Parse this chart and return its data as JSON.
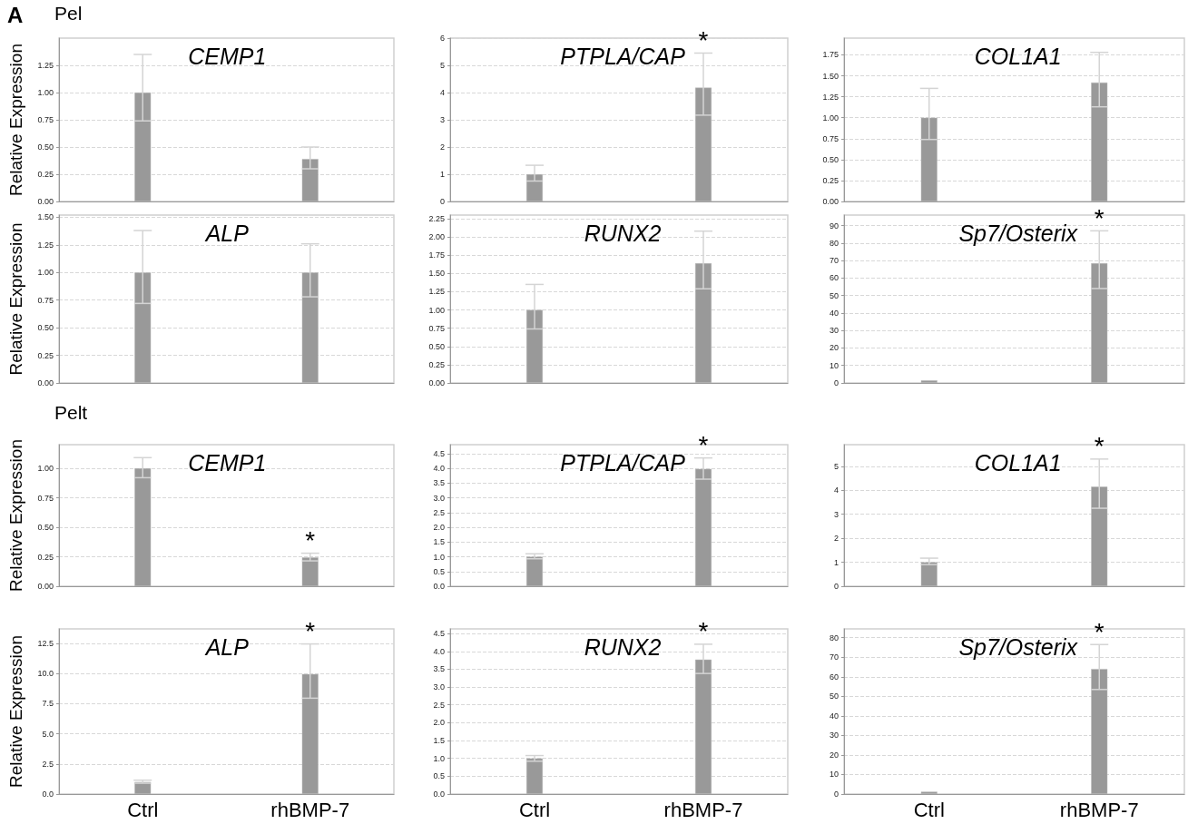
{
  "chart_data": [
    {
      "type": "bar",
      "title": "CEMP1",
      "ylabel": "Relative Expression",
      "annotations": [
        "A",
        "Pel"
      ],
      "categories": [
        "Ctrl",
        "rhBMP-7"
      ],
      "values": [
        1.0,
        0.39
      ],
      "errors": [
        [
          0.74,
          1.35
        ],
        [
          0.3,
          0.5
        ]
      ],
      "color": "#999999",
      "ylim": [
        0,
        1.5
      ],
      "yticks": [
        {
          "value": 0,
          "label": "0.00"
        },
        {
          "value": 0.25,
          "label": "0.25"
        },
        {
          "value": 0.5,
          "label": "0.50"
        },
        {
          "value": 0.75,
          "label": "0.75"
        },
        {
          "value": 1,
          "label": "1.00"
        },
        {
          "value": 1.25,
          "label": "1.25"
        }
      ],
      "grid": "y",
      "tick_labels": "y"
    },
    {
      "type": "bar",
      "title": "PTPLA/CAP",
      "annotations": [
        {
          "text": "*",
          "x": "rhBMP-7",
          "y": 5.45
        }
      ],
      "categories": [
        "Ctrl",
        "rhBMP-7"
      ],
      "values": [
        1.0,
        4.18
      ],
      "errors": [
        [
          0.75,
          1.33
        ],
        [
          3.17,
          5.45
        ]
      ],
      "color": "#999999",
      "ylim": [
        0,
        6
      ],
      "yticks": [
        0,
        1,
        2,
        3,
        4,
        5,
        6
      ],
      "grid": "y",
      "tick_labels": "y"
    },
    {
      "type": "bar",
      "title": "COL1A1",
      "categories": [
        "Ctrl",
        "rhBMP-7"
      ],
      "values": [
        1.0,
        1.42
      ],
      "errors": [
        [
          0.74,
          1.35
        ],
        [
          1.13,
          1.78
        ]
      ],
      "color": "#999999",
      "ylim": [
        0,
        1.95
      ],
      "yticks": [
        {
          "value": 0,
          "label": "0.00"
        },
        {
          "value": 0.25,
          "label": "0.25"
        },
        {
          "value": 0.5,
          "label": "0.50"
        },
        {
          "value": 0.75,
          "label": "0.75"
        },
        {
          "value": 1,
          "label": "1.00"
        },
        {
          "value": 1.25,
          "label": "1.25"
        },
        {
          "value": 1.5,
          "label": "1.50"
        },
        {
          "value": 1.75,
          "label": "1.75"
        }
      ],
      "grid": "y",
      "tick_labels": "y"
    },
    {
      "type": "bar",
      "title": "ALP",
      "ylabel": "Relative Expression",
      "categories": [
        "Ctrl",
        "rhBMP-7"
      ],
      "values": [
        1.0,
        1.0
      ],
      "errors": [
        [
          0.72,
          1.38
        ],
        [
          0.78,
          1.26
        ]
      ],
      "color": "#999999",
      "ylim": [
        0,
        1.52
      ],
      "yticks": [
        {
          "value": 0,
          "label": "0.00"
        },
        {
          "value": 0.25,
          "label": "0.25"
        },
        {
          "value": 0.5,
          "label": "0.50"
        },
        {
          "value": 0.75,
          "label": "0.75"
        },
        {
          "value": 1,
          "label": "1.00"
        },
        {
          "value": 1.25,
          "label": "1.25"
        },
        {
          "value": 1.5,
          "label": "1.50"
        }
      ],
      "grid": "y",
      "tick_labels": "y"
    },
    {
      "type": "bar",
      "title": "RUNX2",
      "categories": [
        "Ctrl",
        "rhBMP-7"
      ],
      "values": [
        1.0,
        1.64
      ],
      "errors": [
        [
          0.74,
          1.35
        ],
        [
          1.29,
          2.08
        ]
      ],
      "color": "#999999",
      "ylim": [
        0,
        2.3
      ],
      "yticks": [
        {
          "value": 0,
          "label": "0.00"
        },
        {
          "value": 0.25,
          "label": "0.25"
        },
        {
          "value": 0.5,
          "label": "0.50"
        },
        {
          "value": 0.75,
          "label": "0.75"
        },
        {
          "value": 1,
          "label": "1.00"
        },
        {
          "value": 1.25,
          "label": "1.25"
        },
        {
          "value": 1.5,
          "label": "1.50"
        },
        {
          "value": 1.75,
          "label": "1.75"
        },
        {
          "value": 2,
          "label": "2.00"
        },
        {
          "value": 2.25,
          "label": "2.25"
        }
      ],
      "grid": "y",
      "tick_labels": "y"
    },
    {
      "type": "bar",
      "title": "Sp7/Osterix",
      "annotations": [
        {
          "text": "*",
          "x": "rhBMP-7",
          "y": 87
        }
      ],
      "categories": [
        "Ctrl",
        "rhBMP-7"
      ],
      "values": [
        1.5,
        68.5
      ],
      "errors": [
        null,
        [
          54,
          87
        ]
      ],
      "color": "#999999",
      "ylim": [
        0,
        96
      ],
      "yticks": [
        0,
        10,
        20,
        30,
        40,
        50,
        60,
        70,
        80,
        90
      ],
      "grid": "y",
      "tick_labels": "y"
    },
    {
      "type": "bar",
      "title": "CEMP1",
      "ylabel": "Relative Expression",
      "annotations": [
        "Pelt",
        {
          "text": "*",
          "x": "rhBMP-7",
          "y": 0.28
        }
      ],
      "categories": [
        "Ctrl",
        "rhBMP-7"
      ],
      "values": [
        1.0,
        0.245
      ],
      "errors": [
        [
          0.92,
          1.09
        ],
        [
          0.215,
          0.28
        ]
      ],
      "color": "#999999",
      "ylim": [
        0,
        1.2
      ],
      "yticks": [
        {
          "value": 0,
          "label": "0.00"
        },
        {
          "value": 0.25,
          "label": "0.25"
        },
        {
          "value": 0.5,
          "label": "0.50"
        },
        {
          "value": 0.75,
          "label": "0.75"
        },
        {
          "value": 1,
          "label": "1.00"
        }
      ],
      "grid": "y",
      "tick_labels": "y"
    },
    {
      "type": "bar",
      "title": "PTPLA/CAP",
      "annotations": [
        {
          "text": "*",
          "x": "rhBMP-7",
          "y": 4.35
        }
      ],
      "categories": [
        "Ctrl",
        "rhBMP-7"
      ],
      "values": [
        1.0,
        3.98
      ],
      "errors": [
        [
          0.93,
          1.1
        ],
        [
          3.63,
          4.35
        ]
      ],
      "color": "#999999",
      "ylim": [
        0,
        4.8
      ],
      "yticks": [
        {
          "value": 0,
          "label": "0.0"
        },
        {
          "value": 0.5,
          "label": "0.5"
        },
        {
          "value": 1,
          "label": "1.0"
        },
        {
          "value": 1.5,
          "label": "1.5"
        },
        {
          "value": 2,
          "label": "2.0"
        },
        {
          "value": 2.5,
          "label": "2.5"
        },
        {
          "value": 3,
          "label": "3.0"
        },
        {
          "value": 3.5,
          "label": "3.5"
        },
        {
          "value": 4,
          "label": "4.0"
        },
        {
          "value": 4.5,
          "label": "4.5"
        }
      ],
      "grid": "y",
      "tick_labels": "y"
    },
    {
      "type": "bar",
      "title": "COL1A1",
      "annotations": [
        {
          "text": "*",
          "x": "rhBMP-7",
          "y": 5.3
        }
      ],
      "categories": [
        "Ctrl",
        "rhBMP-7"
      ],
      "values": [
        1.0,
        4.15
      ],
      "errors": [
        [
          0.9,
          1.17
        ],
        [
          3.25,
          5.3
        ]
      ],
      "color": "#999999",
      "ylim": [
        0,
        5.9
      ],
      "yticks": [
        0,
        1,
        2,
        3,
        4,
        5
      ],
      "grid": "y",
      "tick_labels": "y"
    },
    {
      "type": "bar",
      "title": "ALP",
      "ylabel": "Relative Expression",
      "annotations": [
        {
          "text": "*",
          "x": "rhBMP-7",
          "y": 12.45
        }
      ],
      "categories": [
        "Ctrl",
        "rhBMP-7"
      ],
      "values": [
        1.0,
        9.95
      ],
      "errors": [
        [
          0.9,
          1.15
        ],
        [
          7.95,
          12.45
        ]
      ],
      "color": "#999999",
      "ylim": [
        0,
        13.7
      ],
      "yticks": [
        {
          "value": 0,
          "label": "0.0"
        },
        {
          "value": 2.5,
          "label": "2.5"
        },
        {
          "value": 5,
          "label": "5.0"
        },
        {
          "value": 7.5,
          "label": "7.5"
        },
        {
          "value": 10,
          "label": "10.0"
        },
        {
          "value": 12.5,
          "label": "12.5"
        }
      ],
      "grid": "y"
    },
    {
      "type": "bar",
      "title": "RUNX2",
      "annotations": [
        {
          "text": "*",
          "x": "rhBMP-7",
          "y": 4.2
        }
      ],
      "categories": [
        "Ctrl",
        "rhBMP-7"
      ],
      "values": [
        1.0,
        3.77
      ],
      "errors": [
        [
          0.92,
          1.08
        ],
        [
          3.38,
          4.2
        ]
      ],
      "color": "#999999",
      "ylim": [
        0,
        4.63
      ],
      "yticks": [
        {
          "value": 0,
          "label": "0.0"
        },
        {
          "value": 0.5,
          "label": "0.5"
        },
        {
          "value": 1,
          "label": "1.0"
        },
        {
          "value": 1.5,
          "label": "1.5"
        },
        {
          "value": 2,
          "label": "2.0"
        },
        {
          "value": 2.5,
          "label": "2.5"
        },
        {
          "value": 3,
          "label": "3.0"
        },
        {
          "value": 3.5,
          "label": "3.5"
        },
        {
          "value": 4,
          "label": "4.0"
        },
        {
          "value": 4.5,
          "label": "4.5"
        }
      ],
      "grid": "y"
    },
    {
      "type": "bar",
      "title": "Sp7/Osterix",
      "annotations": [
        {
          "text": "*",
          "x": "rhBMP-7",
          "y": 76.5
        }
      ],
      "categories": [
        "Ctrl",
        "rhBMP-7"
      ],
      "values": [
        1.2,
        64
      ],
      "errors": [
        null,
        [
          53.5,
          76.5
        ]
      ],
      "color": "#999999",
      "ylim": [
        0,
        84.5
      ],
      "yticks": [
        0,
        10,
        20,
        30,
        40,
        50,
        60,
        70,
        80
      ],
      "grid": "y"
    }
  ]
}
